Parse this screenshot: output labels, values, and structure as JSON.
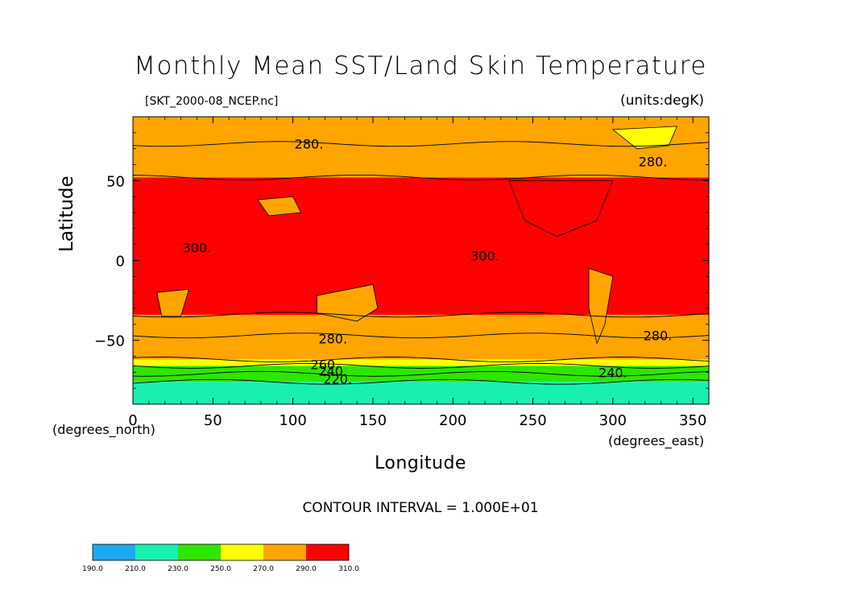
{
  "chart_data": {
    "type": "heatmap",
    "title": "Monthly Mean SST/Land Skin Temperature",
    "subtitle_left": "[SKT_2000-08_NCEP.nc]",
    "subtitle_right": "(units:degK)",
    "xlabel": "Longitude",
    "ylabel": "Latitude",
    "x_unit_label": "(degrees_east)",
    "y_unit_label": "(degrees_north)",
    "xlim": [
      0,
      360
    ],
    "ylim": [
      -90,
      90
    ],
    "x_ticks": [
      "0",
      "50",
      "100",
      "150",
      "200",
      "250",
      "300",
      "350"
    ],
    "y_ticks": [
      "50",
      "0",
      "−50"
    ],
    "contour_interval_text": "CONTOUR INTERVAL = 1.000E+01",
    "contour_labels": [
      {
        "text": "280.",
        "lon": 110,
        "lat": 73
      },
      {
        "text": "280.",
        "lon": 325,
        "lat": 62
      },
      {
        "text": "300.",
        "lon": 220,
        "lat": 3
      },
      {
        "text": "300.",
        "lon": 40,
        "lat": 8
      },
      {
        "text": "280.",
        "lon": 125,
        "lat": -49
      },
      {
        "text": "280.",
        "lon": 328,
        "lat": -47
      },
      {
        "text": "260.",
        "lon": 120,
        "lat": -65
      },
      {
        "text": "240.",
        "lon": 125,
        "lat": -69
      },
      {
        "text": "220.",
        "lon": 128,
        "lat": -74
      },
      {
        "text": "240.",
        "lon": 300,
        "lat": -70
      }
    ],
    "colorbar": {
      "levels": [
        "190.0",
        "210.0",
        "230.0",
        "250.0",
        "270.0",
        "290.0",
        "310.0"
      ],
      "colors": [
        "#1da9f1",
        "#19f0b0",
        "#2ee600",
        "#ffff00",
        "#ffa500",
        "#ff0000"
      ]
    },
    "field_bands": [
      {
        "from_lat": -90,
        "to_lat": -76,
        "value": 225
      },
      {
        "from_lat": -76,
        "to_lat": -66,
        "value": 240
      },
      {
        "from_lat": -66,
        "to_lat": -62,
        "value": 260
      },
      {
        "from_lat": -62,
        "to_lat": -34,
        "value": 280
      },
      {
        "from_lat": -34,
        "to_lat": 52,
        "value": 300
      },
      {
        "from_lat": 52,
        "to_lat": 90,
        "value": 280
      }
    ]
  }
}
